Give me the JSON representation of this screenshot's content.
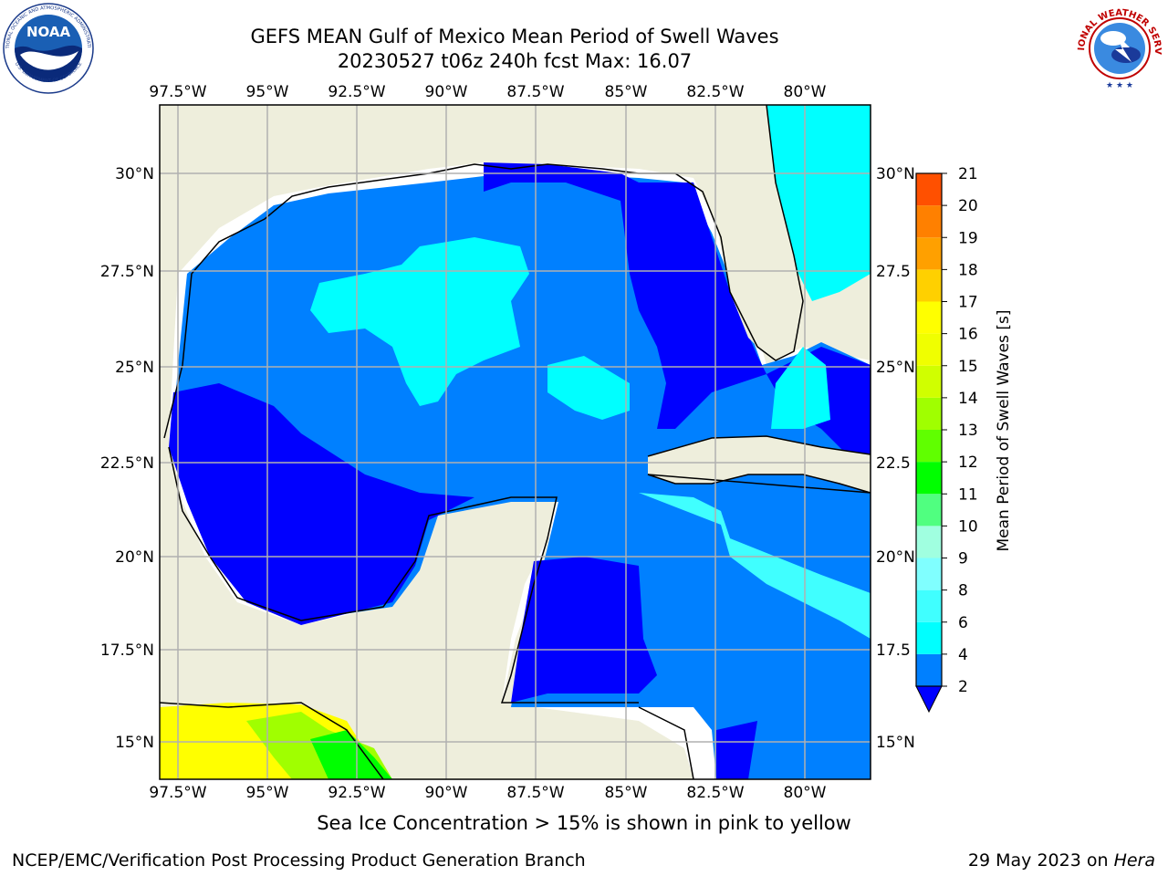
{
  "header": {
    "title_line1": "GEFS MEAN Gulf of Mexico Mean Period of Swell Waves",
    "title_line2": "20230527 t06z 240h fcst   Max: 16.07"
  },
  "logos": {
    "left": {
      "name": "NOAA",
      "ring_text": "NATIONAL OCEANIC AND ATMOSPHERIC ADMINISTRATION",
      "bottom_text": "U.S. DEPARTMENT OF COMMERCE"
    },
    "right": {
      "ring_text": "NATIONAL WEATHER SERVICE"
    }
  },
  "map": {
    "lon_labels": [
      "97.5°W",
      "95°W",
      "92.5°W",
      "90°W",
      "87.5°W",
      "85°W",
      "82.5°W",
      "80°W"
    ],
    "lat_labels_left": [
      "30°N",
      "27.5°N",
      "25°N",
      "22.5°N",
      "20°N",
      "17.5°N",
      "15°N"
    ],
    "lat_labels_right": [
      "30°N",
      "27.5",
      "25°N",
      "22.5",
      "20°N",
      "17.5",
      "15°N"
    ],
    "colors": {
      "land": "#eeeedc",
      "deep_blue": "#0000ff",
      "mid_blue": "#0080ff",
      "cyan": "#00ffff",
      "light_cyan": "#40ffff",
      "grid": "#b0b0b0"
    }
  },
  "colorbar": {
    "label": "Mean Period of Swell Waves [s]",
    "ticks": [
      "2",
      "4",
      "6",
      "8",
      "9",
      "10",
      "11",
      "12",
      "13",
      "14",
      "15",
      "16",
      "17",
      "18",
      "19",
      "20",
      "21"
    ],
    "colors": [
      "#0080ff",
      "#00ffff",
      "#40ffff",
      "#80ffff",
      "#a0ffe0",
      "#50ff80",
      "#00ff00",
      "#60ff00",
      "#a0ff00",
      "#d0ff00",
      "#f0ff00",
      "#ffff00",
      "#ffd000",
      "#ffa000",
      "#ff8000",
      "#ff5000",
      "#ff2000"
    ],
    "extend_color": "#0000ff"
  },
  "footer": {
    "note": "Sea Ice Concentration > 15% is shown in pink to yellow",
    "credit": "NCEP/EMC/Verification Post Processing Product Generation Branch",
    "date_prefix": "29 May 2023 on ",
    "date_host": "Hera"
  }
}
